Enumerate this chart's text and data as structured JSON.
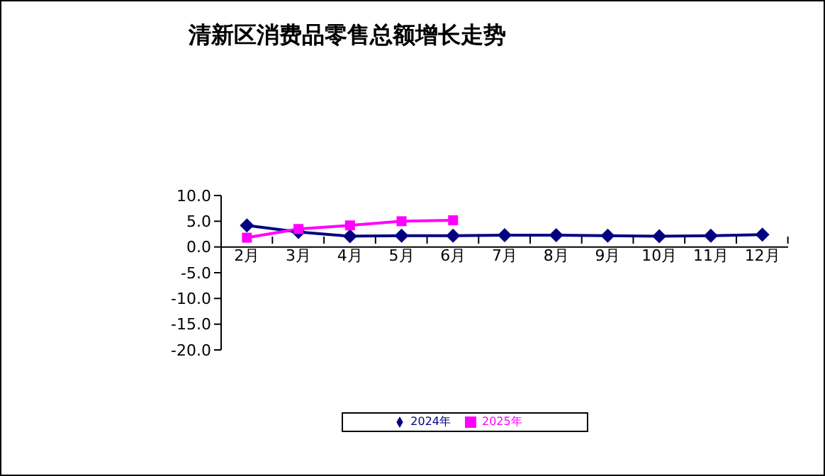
{
  "chart_data": {
    "type": "line",
    "title": "清新区消费品零售总额增长走势",
    "categories": [
      "2月",
      "3月",
      "4月",
      "5月",
      "6月",
      "7月",
      "8月",
      "9月",
      "10月",
      "11月",
      "12月"
    ],
    "series": [
      {
        "name": "2024年",
        "color": "#000080",
        "marker": "diamond",
        "values": [
          4.2,
          2.9,
          2.1,
          2.2,
          2.2,
          2.3,
          2.3,
          2.2,
          2.1,
          2.2,
          2.4
        ]
      },
      {
        "name": "2025年",
        "color": "#ff00ff",
        "marker": "square",
        "values": [
          1.8,
          3.5,
          4.2,
          5.0,
          5.2,
          null,
          null,
          null,
          null,
          null,
          null
        ]
      }
    ],
    "ylim": [
      -20,
      10
    ],
    "yticks": [
      {
        "value": 10,
        "label": "10.0"
      },
      {
        "value": 5,
        "label": "5.0"
      },
      {
        "value": 0,
        "label": "0.0"
      },
      {
        "value": -5,
        "label": "-5.0"
      },
      {
        "value": -10,
        "label": "-10.0"
      },
      {
        "value": -15,
        "label": "-15.0"
      },
      {
        "value": -20,
        "label": "-20.0"
      }
    ],
    "grid": false,
    "legend": "bottom"
  }
}
